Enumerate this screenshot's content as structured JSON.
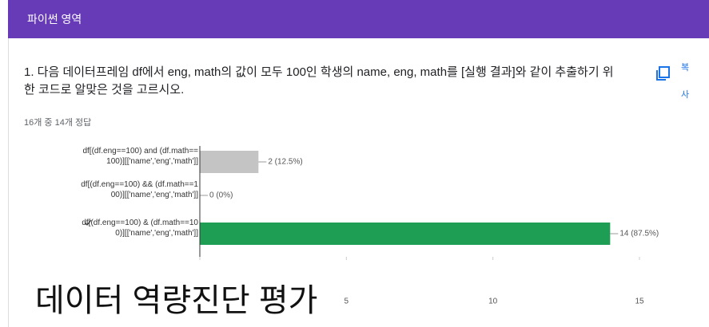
{
  "header": {
    "title": "파이썬 영역"
  },
  "question": {
    "text": "1. 다음 데이터프레임 df에서 eng, math의 값이 모두 100인 학생의 name, eng, math를 [실행 결과]와 같이 추출하기 위한 코드로 알맞은 것을 고르시오.",
    "copy_label": "복사",
    "summary": "16개 중 14개 정답"
  },
  "chart_data": {
    "type": "hbar",
    "categories": [
      "df[(df.eng==100) and (df.math==100)][['name','eng','math']]",
      "df[(df.eng==100) && (df.math==100)][['name','eng','math']]",
      "df[(df.eng==100) & (df.math==100)][['name','eng','math']]"
    ],
    "values": [
      2,
      0,
      14
    ],
    "value_labels": [
      "2 (12.5%)",
      "0 (0%)",
      "14 (87.5%)"
    ],
    "colors": [
      "#c4c4c4",
      "#c4c4c4",
      "#1e9d55"
    ],
    "correct": [
      false,
      false,
      true
    ],
    "xlim": [
      0,
      15
    ],
    "xticks": [
      0,
      5,
      10,
      15
    ]
  },
  "caption": "데이터 역량진단 평가"
}
